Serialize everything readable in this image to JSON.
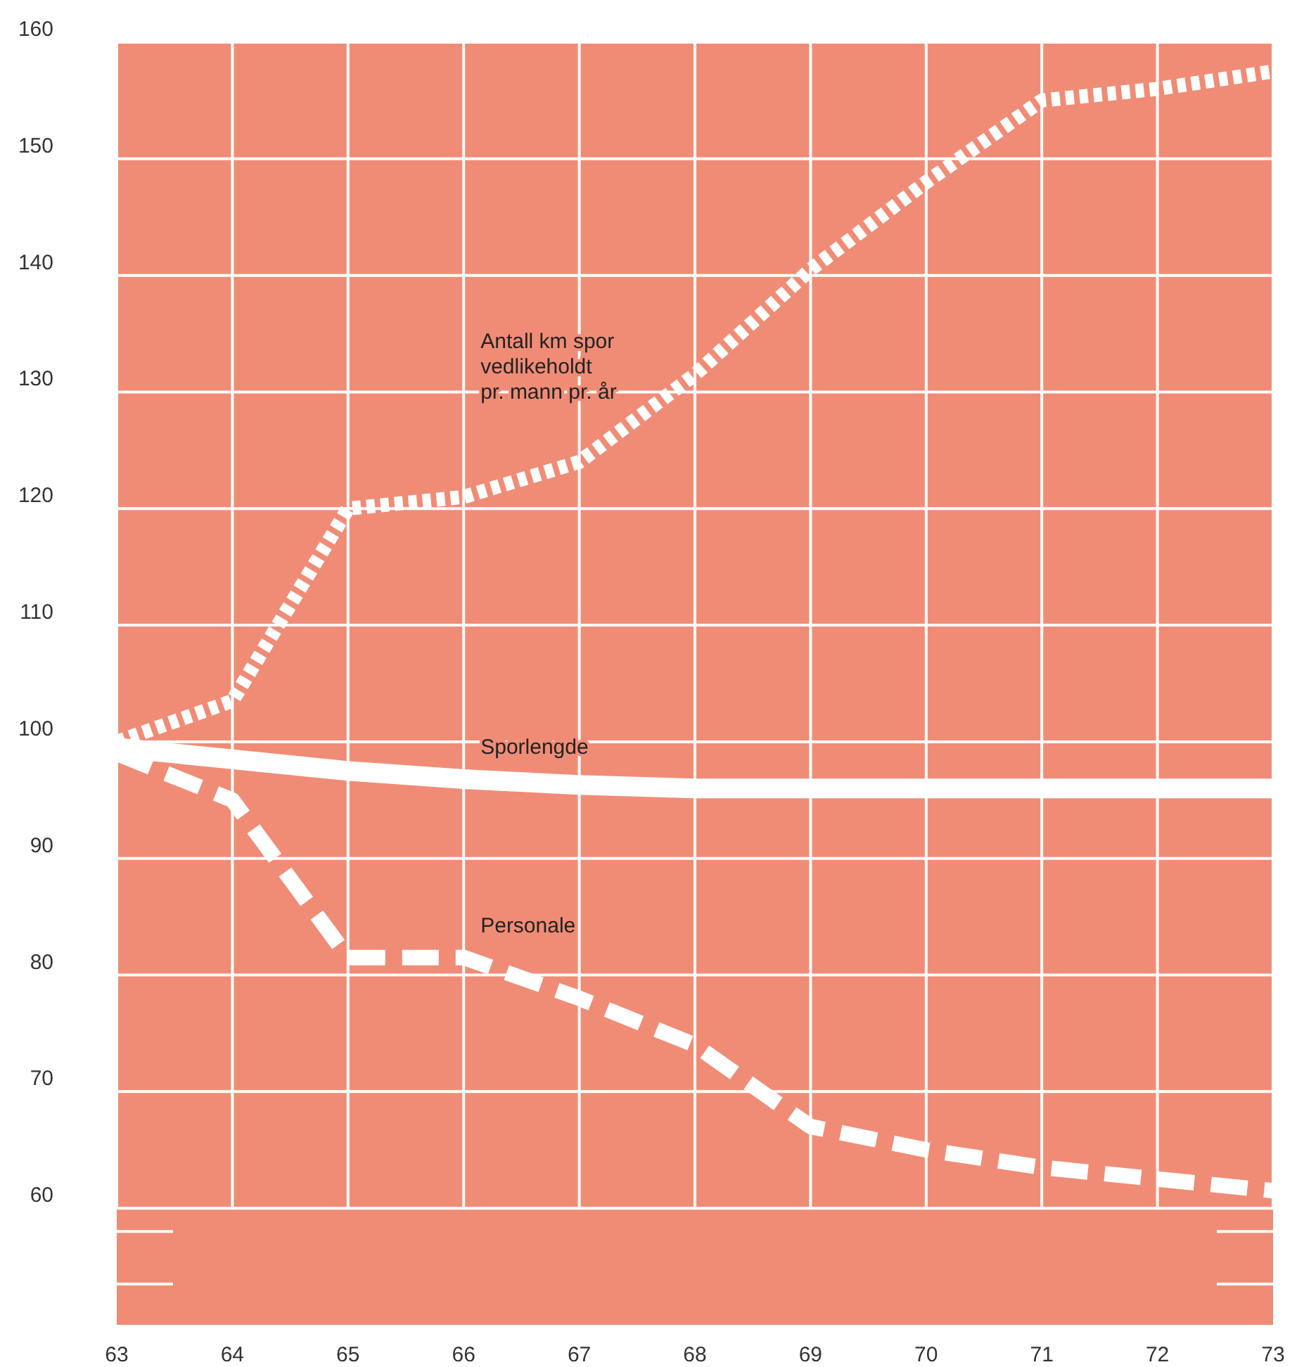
{
  "chart_data": {
    "type": "line",
    "x": [
      63,
      64,
      65,
      66,
      67,
      68,
      69,
      70,
      71,
      72,
      73
    ],
    "xlim": [
      63,
      73
    ],
    "xticks": [
      63,
      64,
      65,
      66,
      67,
      68,
      69,
      70,
      71,
      72,
      73
    ],
    "ylim": [
      50,
      160
    ],
    "yticks": [
      60,
      70,
      80,
      90,
      100,
      110,
      120,
      130,
      140,
      150,
      160
    ],
    "grid": true,
    "marker": "none",
    "series": [
      {
        "name": "Antall km spor vedlikeholdt pr. mann pr. år",
        "color": "#ffffff",
        "line_style": "dotted",
        "values": [
          100,
          103.5,
          120,
          121,
          124,
          131.5,
          140.5,
          148,
          155,
          156,
          157.5
        ]
      },
      {
        "name": "Sporlengde",
        "color": "#ffffff",
        "line_style": "solid",
        "values": [
          99.5,
          98.5,
          97.5,
          96.8,
          96.3,
          96,
          96,
          96,
          96,
          96,
          96
        ]
      },
      {
        "name": "Personale",
        "color": "#ffffff",
        "line_style": "dashed",
        "values": [
          99,
          95,
          81.5,
          81.5,
          78,
          74,
          67,
          65,
          63.5,
          62.5,
          61.5
        ]
      }
    ]
  }
}
